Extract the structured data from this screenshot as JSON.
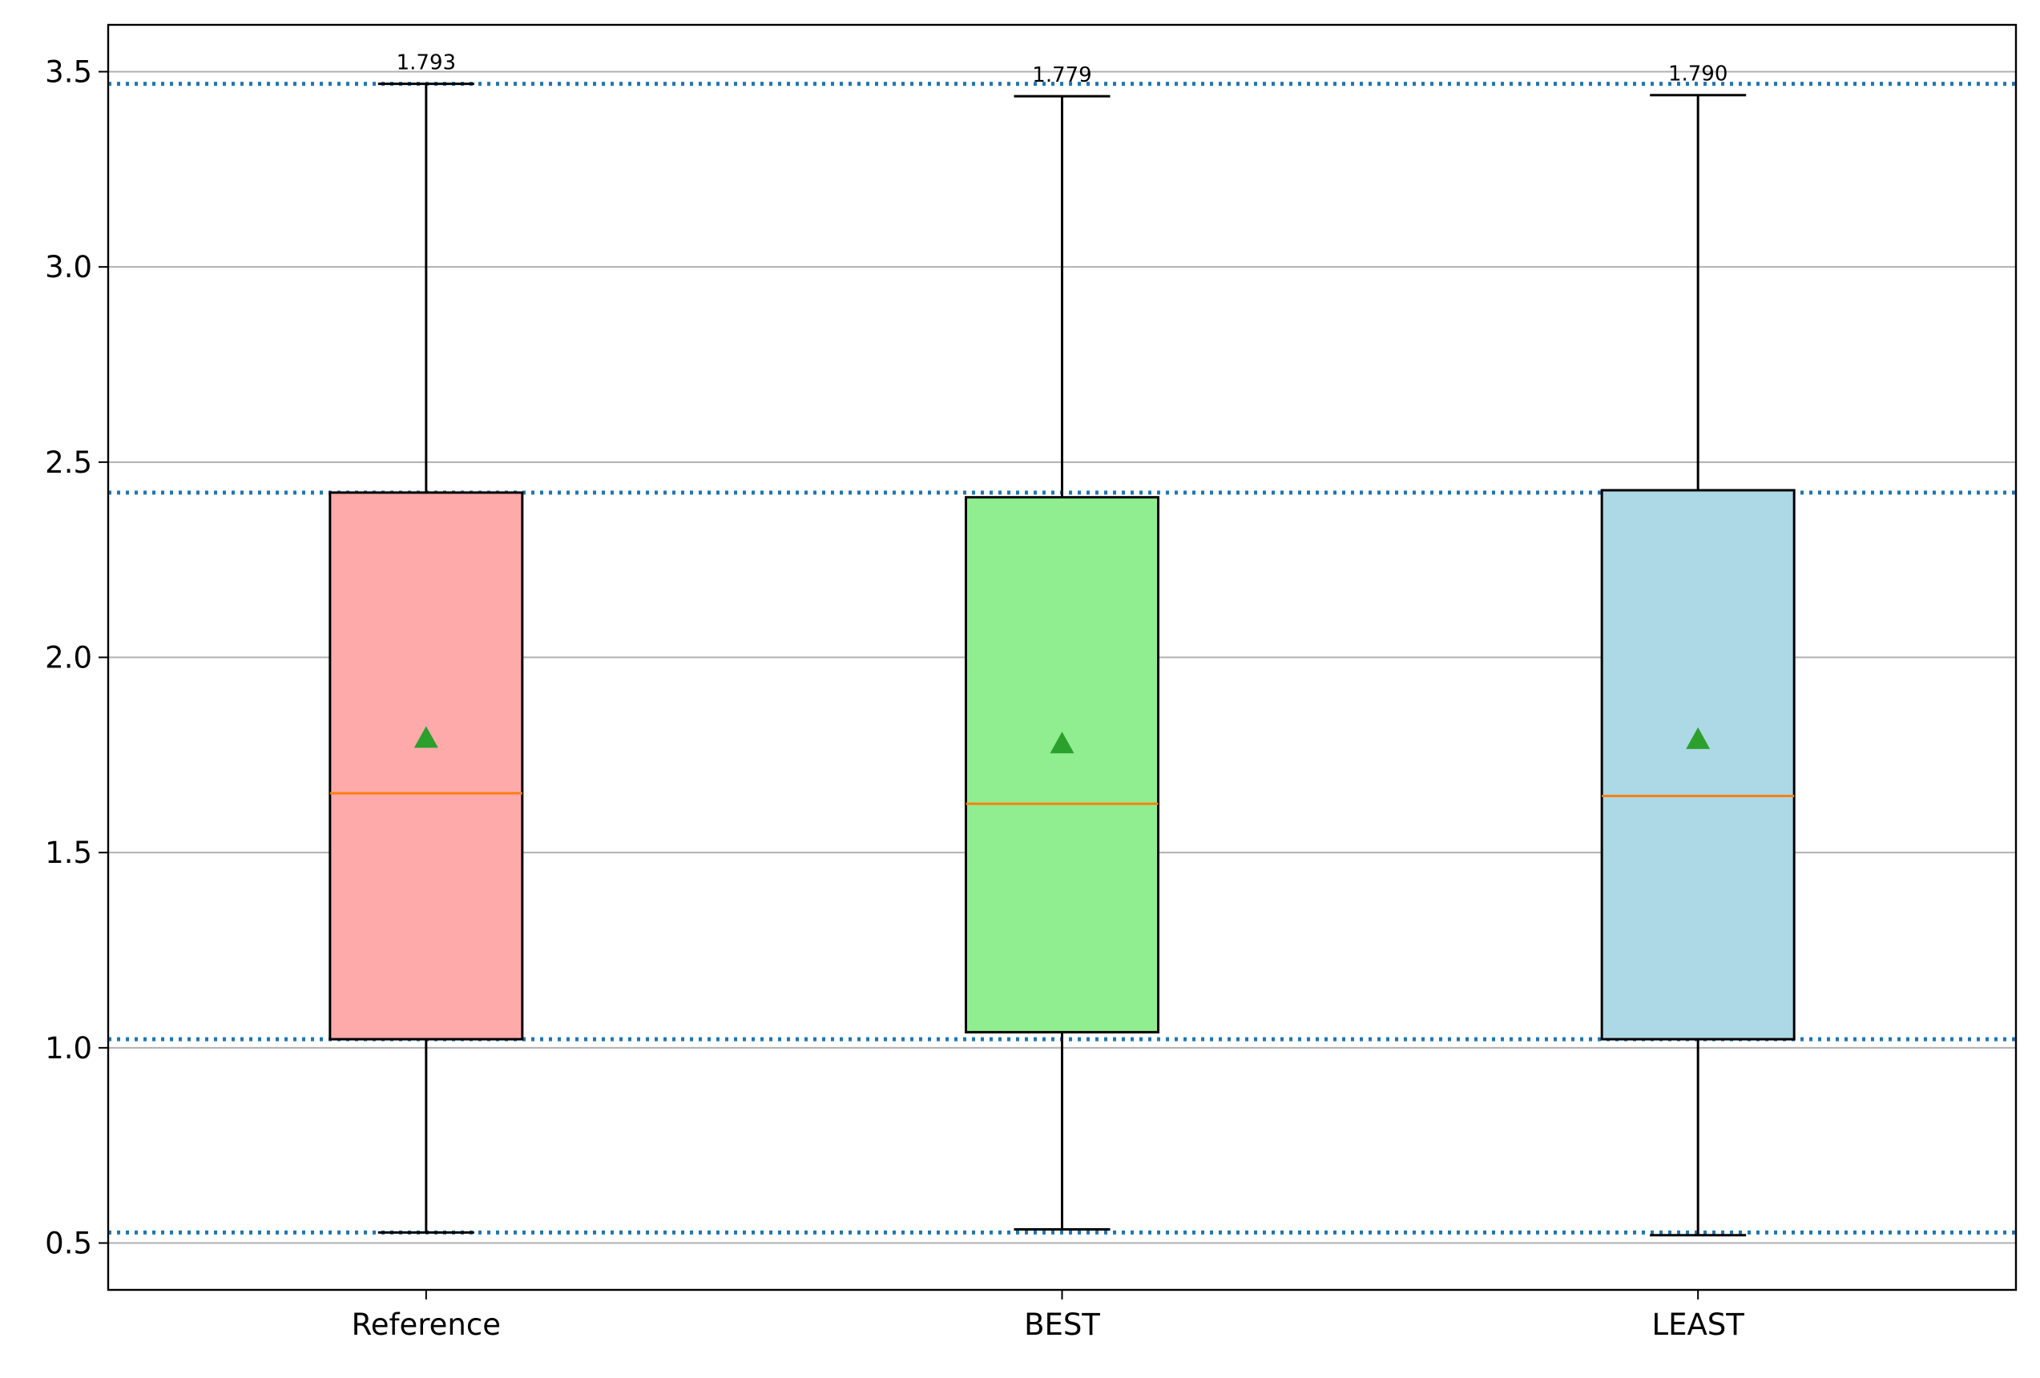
{
  "chart_data": {
    "type": "box",
    "title": "",
    "xlabel": "",
    "ylabel": "",
    "ylim": [
      0.38,
      3.62
    ],
    "y_ticks": [
      0.5,
      1.0,
      1.5,
      2.0,
      2.5,
      3.0,
      3.5
    ],
    "y_tick_labels": [
      "0.5",
      "1.0",
      "1.5",
      "2.0",
      "2.5",
      "3.0",
      "3.5"
    ],
    "grid": "y",
    "categories": [
      "Reference",
      "BEST",
      "LEAST"
    ],
    "boxes": [
      {
        "name": "Reference",
        "whisker_low": 0.527,
        "q1": 1.022,
        "median": 1.652,
        "q3": 2.422,
        "whisker_high": 3.469,
        "mean": 1.793,
        "mean_label": "1.793",
        "color": "#FFAAAA"
      },
      {
        "name": "BEST",
        "whisker_low": 0.535,
        "q1": 1.04,
        "median": 1.625,
        "q3": 2.41,
        "whisker_high": 3.437,
        "mean": 1.779,
        "mean_label": "1.779",
        "color": "#90EE90"
      },
      {
        "name": "LEAST",
        "whisker_low": 0.52,
        "q1": 1.022,
        "median": 1.645,
        "q3": 2.428,
        "whisker_high": 3.44,
        "mean": 1.79,
        "mean_label": "1.790",
        "color": "#ADD8E6"
      }
    ],
    "reference_lines": [
      0.527,
      1.022,
      2.422,
      3.469
    ],
    "colors": {
      "median": "#FF7F0E",
      "mean_marker": "#2CA02C",
      "reference_line": "#1F77B4",
      "grid": "#B0B0B0",
      "box_edge": "#000000"
    }
  }
}
